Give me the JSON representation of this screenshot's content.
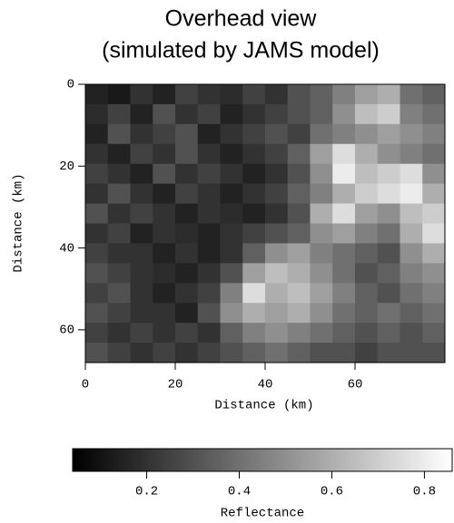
{
  "chart_data": {
    "type": "heatmap",
    "title": [
      "Overhead view",
      "(simulated by JAMS model)"
    ],
    "xlabel": "Distance (km)",
    "ylabel": "Distance (km)",
    "xlim": [
      0,
      80
    ],
    "ylim": [
      0,
      68
    ],
    "y_inverted": true,
    "xticks": [
      0,
      20,
      40,
      60
    ],
    "yticks": [
      0,
      20,
      40,
      60
    ],
    "colormap": "gray",
    "z": [
      [
        0.15,
        0.12,
        0.2,
        0.15,
        0.25,
        0.2,
        0.18,
        0.25,
        0.2,
        0.3,
        0.35,
        0.45,
        0.55,
        0.6,
        0.4,
        0.35
      ],
      [
        0.18,
        0.25,
        0.15,
        0.3,
        0.2,
        0.25,
        0.15,
        0.2,
        0.25,
        0.3,
        0.35,
        0.5,
        0.65,
        0.7,
        0.45,
        0.4
      ],
      [
        0.15,
        0.3,
        0.2,
        0.25,
        0.3,
        0.15,
        0.2,
        0.25,
        0.3,
        0.25,
        0.4,
        0.45,
        0.5,
        0.55,
        0.5,
        0.45
      ],
      [
        0.2,
        0.15,
        0.25,
        0.2,
        0.3,
        0.2,
        0.15,
        0.2,
        0.25,
        0.35,
        0.55,
        0.75,
        0.6,
        0.5,
        0.45,
        0.4
      ],
      [
        0.25,
        0.2,
        0.15,
        0.3,
        0.2,
        0.25,
        0.2,
        0.15,
        0.2,
        0.3,
        0.5,
        0.8,
        0.65,
        0.7,
        0.75,
        0.5
      ],
      [
        0.2,
        0.3,
        0.2,
        0.15,
        0.25,
        0.2,
        0.15,
        0.2,
        0.25,
        0.35,
        0.45,
        0.6,
        0.7,
        0.75,
        0.8,
        0.6
      ],
      [
        0.3,
        0.2,
        0.25,
        0.2,
        0.15,
        0.2,
        0.18,
        0.15,
        0.2,
        0.3,
        0.6,
        0.75,
        0.55,
        0.5,
        0.65,
        0.7
      ],
      [
        0.2,
        0.25,
        0.15,
        0.2,
        0.18,
        0.15,
        0.2,
        0.25,
        0.3,
        0.35,
        0.5,
        0.55,
        0.45,
        0.4,
        0.6,
        0.75
      ],
      [
        0.25,
        0.2,
        0.2,
        0.15,
        0.2,
        0.15,
        0.2,
        0.35,
        0.5,
        0.55,
        0.45,
        0.4,
        0.35,
        0.3,
        0.5,
        0.6
      ],
      [
        0.3,
        0.25,
        0.2,
        0.18,
        0.15,
        0.2,
        0.3,
        0.55,
        0.65,
        0.6,
        0.5,
        0.4,
        0.3,
        0.35,
        0.45,
        0.5
      ],
      [
        0.25,
        0.3,
        0.2,
        0.15,
        0.2,
        0.25,
        0.45,
        0.75,
        0.6,
        0.65,
        0.55,
        0.45,
        0.35,
        0.3,
        0.4,
        0.45
      ],
      [
        0.3,
        0.25,
        0.2,
        0.2,
        0.15,
        0.3,
        0.5,
        0.6,
        0.55,
        0.6,
        0.5,
        0.4,
        0.35,
        0.4,
        0.35,
        0.4
      ],
      [
        0.25,
        0.2,
        0.25,
        0.2,
        0.25,
        0.2,
        0.35,
        0.45,
        0.5,
        0.45,
        0.4,
        0.35,
        0.3,
        0.35,
        0.3,
        0.35
      ],
      [
        0.3,
        0.25,
        0.2,
        0.25,
        0.2,
        0.25,
        0.3,
        0.35,
        0.4,
        0.35,
        0.3,
        0.3,
        0.25,
        0.3,
        0.3,
        0.3
      ]
    ],
    "colorbar": {
      "label": "Reflectance",
      "lim": [
        0.04,
        0.86
      ],
      "ticks": [
        0.2,
        0.4,
        0.6,
        0.8
      ]
    }
  }
}
